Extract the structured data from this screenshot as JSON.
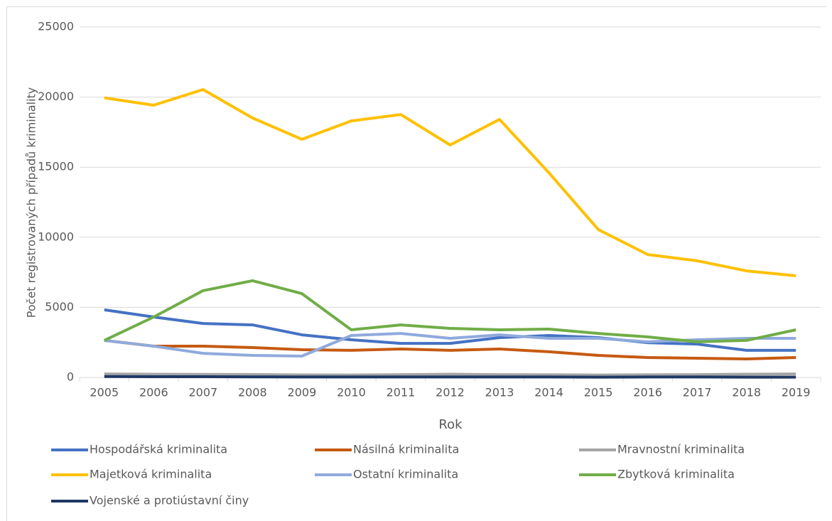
{
  "chart_data": {
    "type": "line",
    "y_label": "Počet registrovaných případů kriminality",
    "x_label": "Rok",
    "categories": [
      "2005",
      "2006",
      "2007",
      "2008",
      "2009",
      "2010",
      "2011",
      "2012",
      "2013",
      "2014",
      "2015",
      "2016",
      "2017",
      "2018",
      "2019"
    ],
    "ylim": [
      0,
      25000
    ],
    "yticks": [
      0,
      5000,
      10000,
      15000,
      20000,
      25000
    ],
    "grid": true,
    "series": [
      {
        "name": "Hospodářská kriminalita",
        "color": "#4472c4",
        "values": [
          4820,
          4310,
          3850,
          3750,
          3040,
          2690,
          2430,
          2430,
          2840,
          2990,
          2840,
          2480,
          2380,
          1930,
          1930
        ]
      },
      {
        "name": "Násilná kriminalita",
        "color": "#c55a11",
        "values": [
          2640,
          2230,
          2230,
          2130,
          1980,
          1930,
          2030,
          1930,
          2030,
          1830,
          1570,
          1420,
          1370,
          1320,
          1420
        ]
      },
      {
        "name": "Mravnostní kriminalita",
        "color": "#a5a5a5",
        "values": [
          250,
          230,
          220,
          210,
          180,
          170,
          200,
          230,
          200,
          190,
          170,
          190,
          200,
          230,
          250
        ]
      },
      {
        "name": "Majetková kriminalita",
        "color": "#ffc000",
        "values": [
          19950,
          19420,
          20540,
          18510,
          16990,
          18300,
          18760,
          16580,
          18410,
          14600,
          10550,
          8770,
          8320,
          7600,
          7250
        ]
      },
      {
        "name": "Ostatní kriminalita",
        "color": "#8faadc",
        "values": [
          2640,
          2230,
          1720,
          1570,
          1520,
          2990,
          3140,
          2790,
          3040,
          2790,
          2790,
          2540,
          2690,
          2790,
          2790
        ]
      },
      {
        "name": "Zbytková kriminalita",
        "color": "#70ad47",
        "values": [
          2640,
          4310,
          6190,
          6900,
          5980,
          3400,
          3750,
          3500,
          3400,
          3450,
          3140,
          2890,
          2540,
          2640,
          3400
        ]
      },
      {
        "name": "Vojenské a protiústavní činy",
        "color": "#1f3864",
        "values": [
          60,
          50,
          50,
          40,
          30,
          30,
          30,
          30,
          30,
          30,
          20,
          30,
          30,
          20,
          20
        ]
      }
    ]
  }
}
